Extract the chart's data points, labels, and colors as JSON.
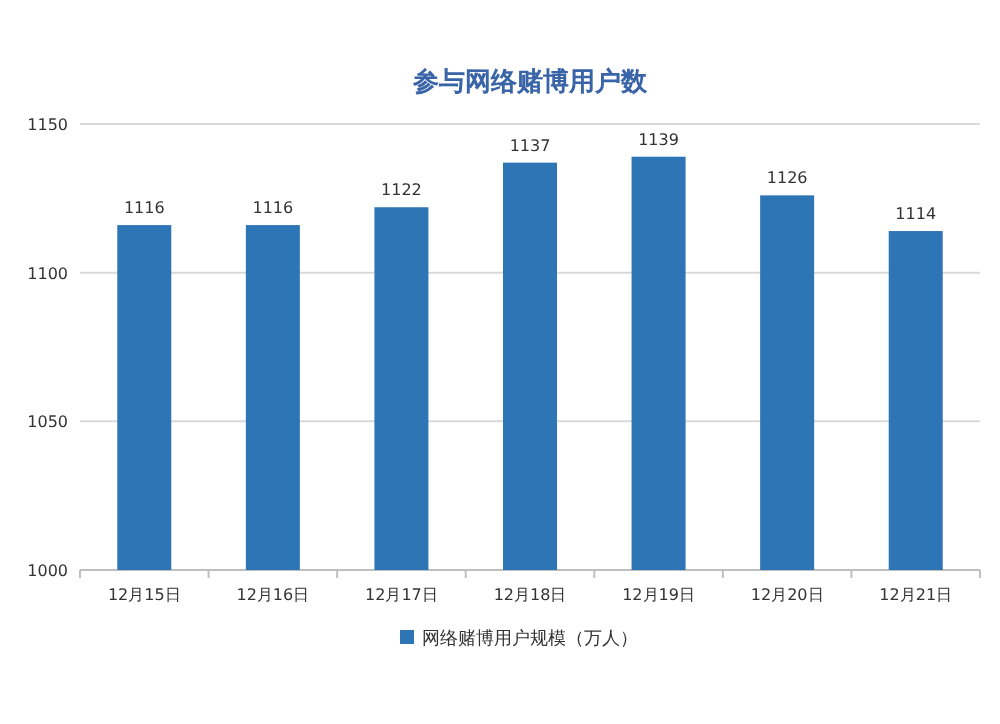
{
  "chart_data": {
    "type": "bar",
    "title": "参与网络赌博用户数",
    "categories": [
      "12月15日",
      "12月16日",
      "12月17日",
      "12月18日",
      "12月19日",
      "12月20日",
      "12月21日"
    ],
    "series": [
      {
        "name": "网络赌博用户规模（万人）",
        "color": "#2e75b6",
        "values": [
          1116,
          1116,
          1122,
          1137,
          1139,
          1126,
          1114
        ]
      }
    ],
    "ylim": [
      1000,
      1150
    ],
    "yticks": [
      1000,
      1050,
      1100,
      1150
    ],
    "grid": "y",
    "data_labels": true,
    "legend": "bottom"
  }
}
